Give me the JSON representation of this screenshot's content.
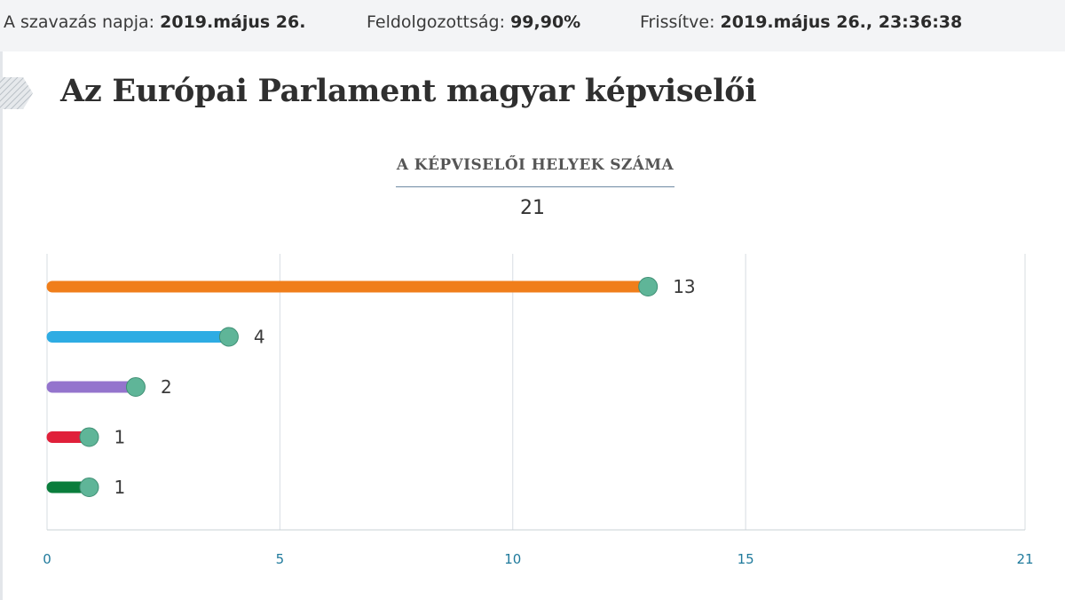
{
  "header": {
    "date_label": "A szavazás napja:",
    "date_value": "2019.május 26.",
    "progress_label": "Feldolgozottság:",
    "progress_value": "99,90%",
    "updated_label": "Frissítve:",
    "updated_value": "2019.május 26., 23:36:38"
  },
  "page": {
    "title": "Az Európai Parlament magyar képviselői"
  },
  "chart_data": {
    "type": "bar",
    "orientation": "horizontal",
    "title": "A KÉPVISELŐI HELYEK SZÁMA",
    "total": "21",
    "xlim": [
      0,
      21
    ],
    "xticks": [
      0,
      5,
      10,
      15,
      21
    ],
    "grid": true,
    "series": [
      {
        "value": 13,
        "label": "13",
        "color": "#f07e1a"
      },
      {
        "value": 4,
        "label": "4",
        "color": "#2eace3"
      },
      {
        "value": 2,
        "label": "2",
        "color": "#9474cd"
      },
      {
        "value": 1,
        "label": "1",
        "color": "#e0203a"
      },
      {
        "value": 1,
        "label": "1",
        "color": "#0a7d3c"
      }
    ],
    "marker_color": "#5fb598"
  }
}
